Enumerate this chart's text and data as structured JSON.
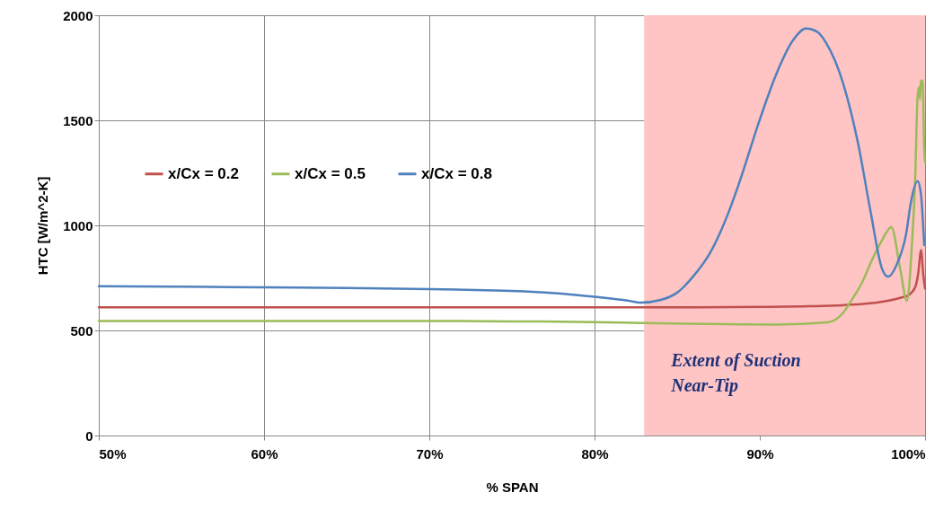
{
  "chart_data": {
    "type": "line",
    "xlabel": "% SPAN",
    "ylabel": "HTC [W/m^2-K]",
    "xlim": [
      50,
      100
    ],
    "ylim": [
      0,
      2000
    ],
    "xticks": [
      {
        "value": 50,
        "label": "50%"
      },
      {
        "value": 60,
        "label": "60%"
      },
      {
        "value": 70,
        "label": "70%"
      },
      {
        "value": 80,
        "label": "80%"
      },
      {
        "value": 90,
        "label": "90%"
      },
      {
        "value": 100,
        "label": "100%"
      }
    ],
    "yticks": [
      0,
      500,
      1000,
      1500,
      2000
    ],
    "grid": true,
    "legend": "top left",
    "line_style": "solid",
    "bands": [
      {
        "axis": "x",
        "from": 83,
        "to": 100,
        "label": "Extent of Suction\nNear-Tip",
        "color": "#ffc4c4"
      }
    ],
    "series": [
      {
        "name": "x/Cx = 0.2",
        "color": "#c0504d",
        "x": [
          50,
          60,
          70,
          80,
          85,
          90,
          93,
          95,
          96.5,
          97.5,
          98.5,
          99,
          99.4,
          99.6,
          99.75,
          99.9,
          100
        ],
        "values": [
          610,
          610,
          610,
          610,
          610,
          612,
          615,
          620,
          628,
          638,
          655,
          668,
          705,
          780,
          884,
          760,
          700
        ]
      },
      {
        "name": "x/Cx = 0.5",
        "color": "#9bbb59",
        "x": [
          50,
          60,
          70,
          75,
          80,
          83,
          88,
          91,
          94.1,
          95,
          95.6,
          96.2,
          96.7,
          97.4,
          97.96,
          98.5,
          98.9,
          99.2,
          99.4,
          99.55,
          99.64,
          99.7,
          99.75,
          99.85,
          99.95,
          100
        ],
        "values": [
          545,
          545,
          545,
          543,
          540,
          535,
          530,
          528,
          538,
          580,
          650,
          730,
          820,
          930,
          991,
          791,
          641,
          900,
          1218,
          1617,
          1658,
          1600,
          1688,
          1690,
          1361,
          1300
        ]
      },
      {
        "name": "x/Cx = 0.8",
        "color": "#4f81bd",
        "x": [
          50,
          55,
          60,
          65,
          70,
          74,
          76,
          78,
          80,
          82,
          82.8,
          84,
          85,
          86,
          87,
          88,
          88.7,
          90,
          91,
          92,
          92.8,
          93.5,
          94,
          95.05,
          95.95,
          96.68,
          97.41,
          97.77,
          98.32,
          98.86,
          99.13,
          99.55,
          99.75,
          99.95
        ],
        "values": [
          710,
          708,
          705,
          702,
          697,
          690,
          685,
          675,
          660,
          642,
          632,
          645,
          680,
          760,
          870,
          1040,
          1190,
          1504,
          1720,
          1880,
          1937,
          1920,
          1870,
          1674,
          1389,
          1076,
          791,
          756,
          820,
          962,
          1104,
          1211,
          1150,
          906
        ]
      }
    ]
  }
}
